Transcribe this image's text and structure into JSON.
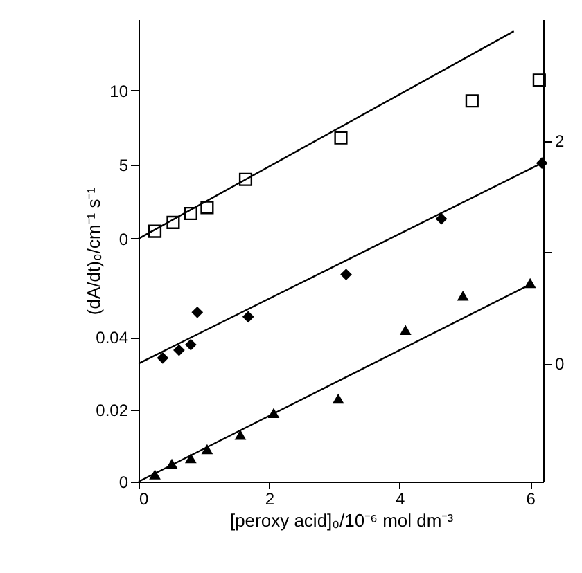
{
  "chart_data": {
    "type": "scatter",
    "xlabel": "[peroxy acid]₀/10⁻⁶ mol dm⁻³",
    "ylabel": "(dA/dt)₀/cm⁻¹ s⁻¹",
    "xlim": [
      0,
      6.2
    ],
    "xticks": [
      0,
      2,
      4,
      6
    ],
    "ylim": [
      -16.4,
      14.8
    ],
    "yticks": [
      0,
      5,
      10
    ],
    "y2lim": [
      -1.06,
      3.09
    ],
    "y2ticks": [
      0,
      {
        "value": 1,
        "label": null
      },
      2
    ],
    "y3lim": [
      0,
      0.128
    ],
    "y3ticks": [
      0,
      0.02,
      0.04
    ],
    "grid": false,
    "series": [
      {
        "axis": "y",
        "marker": "square",
        "color": "#000000",
        "x": [
          0.25,
          0.53,
          0.8,
          1.05,
          1.64,
          3.1,
          5.11,
          6.14
        ],
        "values": [
          0.5,
          1.1,
          1.7,
          2.1,
          4.0,
          6.8,
          9.3,
          10.7
        ]
      },
      {
        "type": "line",
        "axis": "y",
        "color": "#000000",
        "x": [
          0,
          5.75
        ],
        "values": [
          0,
          14.0
        ]
      },
      {
        "axis": "y2",
        "marker": "diamond",
        "color": "#000000",
        "x": [
          0.37,
          0.62,
          0.8,
          0.9,
          1.68,
          3.18,
          4.64,
          6.18
        ],
        "values": [
          0.05,
          0.12,
          0.17,
          0.46,
          0.42,
          0.8,
          1.3,
          1.8
        ]
      },
      {
        "type": "line",
        "axis": "y2",
        "color": "#000000",
        "x": [
          0,
          6.18
        ],
        "values": [
          0,
          1.8
        ]
      },
      {
        "axis": "y3",
        "marker": "triangle",
        "color": "#000000",
        "x": [
          0.25,
          0.51,
          0.8,
          1.05,
          1.56,
          2.07,
          3.06,
          4.09,
          4.97,
          6.0
        ],
        "values": [
          0.002,
          0.005,
          0.0065,
          0.009,
          0.013,
          0.019,
          0.023,
          0.042,
          0.0515,
          0.055
        ]
      },
      {
        "type": "line",
        "axis": "y3",
        "color": "#000000",
        "x": [
          0,
          6.0
        ],
        "values": [
          0,
          0.0546
        ]
      }
    ]
  }
}
